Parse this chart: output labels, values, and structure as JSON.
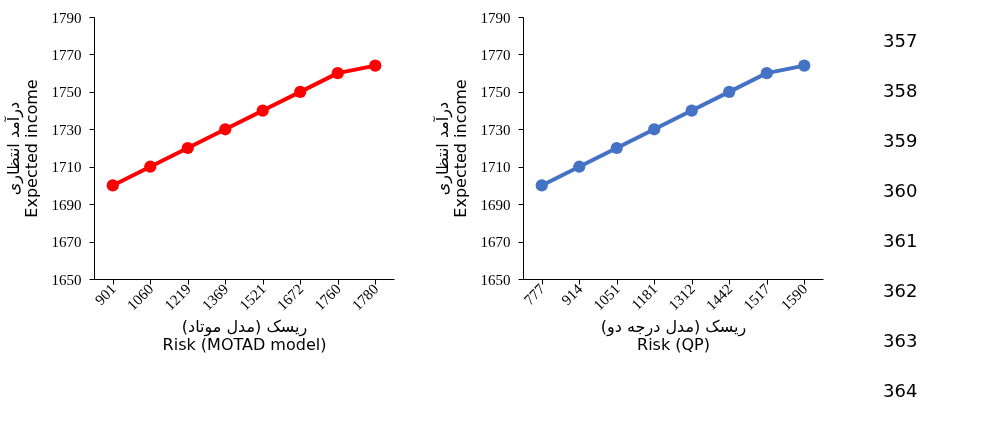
{
  "chart_data": [
    {
      "type": "line",
      "categories": [
        "901",
        "1060",
        "1219",
        "1369",
        "1521",
        "1672",
        "1760",
        "1780"
      ],
      "series": [
        {
          "color": "#ff0000",
          "values": [
            1700,
            1710,
            1720,
            1730,
            1740,
            1750,
            1760,
            1764
          ]
        }
      ],
      "xlabel": "ریسک (مدل موتاد)\nRisk (MOTAD model)",
      "ylabel": "درآمد انتظاری\nExpected income",
      "ylim": [
        1650,
        1790
      ],
      "yticks": [
        1650,
        1670,
        1690,
        1710,
        1730,
        1750,
        1770,
        1790
      ],
      "marker": "circle",
      "line_style": "solid",
      "grid": false
    },
    {
      "type": "line",
      "categories": [
        "777",
        "914",
        "1051",
        "1181",
        "1312",
        "1442",
        "1517",
        "1590"
      ],
      "series": [
        {
          "color": "#4472c4",
          "values": [
            1700,
            1710,
            1720,
            1730,
            1740,
            1750,
            1760,
            1764
          ]
        }
      ],
      "xlabel": "ریسک (مدل درجه دو)\nRisk  (QP)",
      "ylabel": "درآمد انتظاری\nExpected income",
      "ylim": [
        1650,
        1790
      ],
      "yticks": [
        1650,
        1670,
        1690,
        1710,
        1730,
        1750,
        1770,
        1790
      ],
      "marker": "circle",
      "line_style": "solid",
      "grid": false,
      "annotations": [
        "357",
        "358",
        "359",
        "360",
        "361",
        "362",
        "363",
        "364"
      ]
    }
  ]
}
